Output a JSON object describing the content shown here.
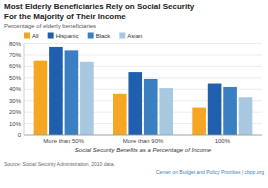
{
  "chart_data": {
    "type": "bar",
    "title": "Most Elderly Beneficiaries Rely on Social Security\nFor the Majority of Their Income",
    "subtitle": "Percentage of elderly beneficiaries",
    "xlabel": "Social Security Benefits as a Percentage of Income",
    "annotations": [
      "Source: Social Security Administration, 2010 data.",
      "Center on Budget and Policy Priorities | cbpp.org"
    ],
    "categories": [
      "More than 50%",
      "More than 90%",
      "100%"
    ],
    "series": [
      {
        "name": "All",
        "color": "#F5A623",
        "values": [
          65,
          36,
          24
        ]
      },
      {
        "name": "Hispanic",
        "color": "#1F5FAD",
        "values": [
          77,
          55,
          45
        ]
      },
      {
        "name": "Black",
        "color": "#3A7FC1",
        "values": [
          74,
          49,
          42
        ]
      },
      {
        "name": "Asian",
        "color": "#A8C8E0",
        "values": [
          64,
          41,
          33
        ]
      }
    ],
    "ylim": [
      0,
      80
    ],
    "yticks": [
      0,
      {
        "value": 10,
        "label": "10%"
      },
      {
        "value": 20,
        "label": "20%"
      },
      {
        "value": 30,
        "label": "30%"
      },
      {
        "value": 40,
        "label": "40%"
      },
      {
        "value": 50,
        "label": "50%"
      },
      {
        "value": 60,
        "label": "60%"
      },
      {
        "value": 70,
        "label": "70%"
      },
      {
        "value": 80,
        "label": "80%"
      }
    ],
    "grid": true,
    "legend": "upper left"
  }
}
